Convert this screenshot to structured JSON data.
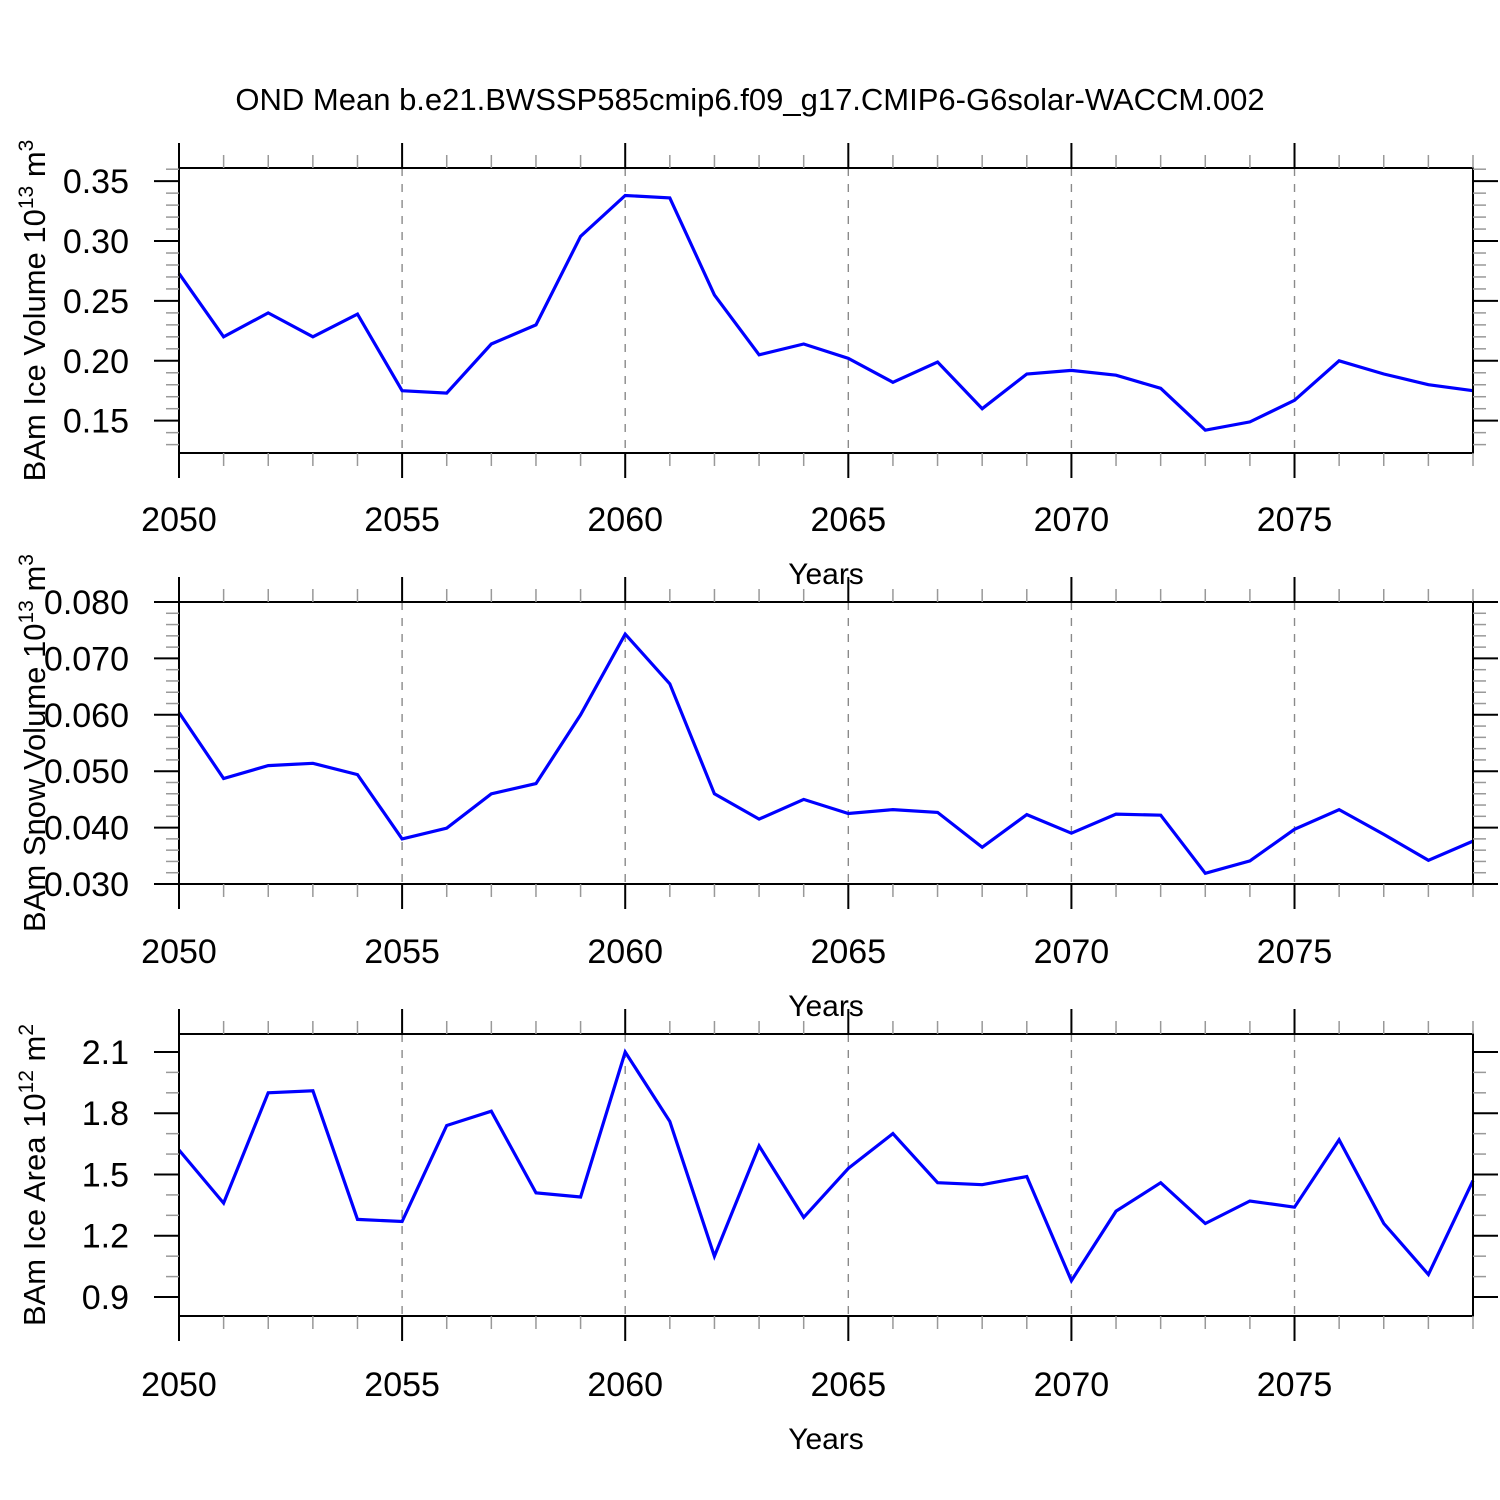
{
  "title": "OND Mean b.e21.BWSSP585cmip6.f09_g17.CMIP6-G6solar-WACCM.002",
  "colors": {
    "line": "#0000ff",
    "grid": "#8a8a8a",
    "axis": "#000000",
    "minor_tick": "#999999",
    "text": "#000000",
    "background": "#ffffff"
  },
  "x_axis": {
    "label": "Years",
    "years": [
      2050,
      2051,
      2052,
      2053,
      2054,
      2055,
      2056,
      2057,
      2058,
      2059,
      2060,
      2061,
      2062,
      2063,
      2064,
      2065,
      2066,
      2067,
      2068,
      2069,
      2070,
      2071,
      2072,
      2073,
      2074,
      2075,
      2076,
      2077,
      2078,
      2079
    ],
    "major_ticks": [
      2050,
      2055,
      2060,
      2065,
      2070,
      2075
    ],
    "major_tick_labels": [
      "2050",
      "2055",
      "2060",
      "2065",
      "2070",
      "2075"
    ],
    "minor_step": 1,
    "gridlines": [
      2055,
      2060,
      2065,
      2070,
      2075
    ],
    "range": [
      2050,
      2079
    ]
  },
  "chart_data": [
    {
      "type": "line",
      "name": "ice-volume",
      "ylabel": "BAm Ice Volume 10^13 m^3",
      "ylabel_parts": {
        "base": "BAm Ice Volume 10",
        "exp": "13",
        "unit": " m",
        "unit_exp": "3"
      },
      "xlabel": "Years",
      "ylim": [
        0.123,
        0.361
      ],
      "yticks": [
        0.15,
        0.2,
        0.25,
        0.3,
        0.35
      ],
      "ytick_labels": [
        "0.15",
        "0.20",
        "0.25",
        "0.30",
        "0.35"
      ],
      "y_minor_step": 0.01,
      "values": [
        0.273,
        0.22,
        0.24,
        0.22,
        0.239,
        0.175,
        0.173,
        0.214,
        0.23,
        0.304,
        0.338,
        0.336,
        0.255,
        0.205,
        0.214,
        0.202,
        0.182,
        0.199,
        0.16,
        0.189,
        0.192,
        0.188,
        0.177,
        0.142,
        0.149,
        0.167,
        0.2,
        0.189,
        0.18,
        0.175
      ]
    },
    {
      "type": "line",
      "name": "snow-volume",
      "ylabel": "BAm Snow Volume 10^13 m^3",
      "ylabel_parts": {
        "base": "BAm Snow Volume 10",
        "exp": "13",
        "unit": " m",
        "unit_exp": "3"
      },
      "xlabel": "Years",
      "ylim": [
        0.03,
        0.08
      ],
      "yticks": [
        0.03,
        0.04,
        0.05,
        0.06,
        0.07,
        0.08
      ],
      "ytick_labels": [
        "0.030",
        "0.040",
        "0.050",
        "0.060",
        "0.070",
        "0.080"
      ],
      "y_minor_step": 0.002,
      "values": [
        0.0604,
        0.0487,
        0.051,
        0.0514,
        0.0494,
        0.038,
        0.0399,
        0.046,
        0.0478,
        0.06,
        0.0743,
        0.0655,
        0.046,
        0.0415,
        0.045,
        0.0425,
        0.0432,
        0.0427,
        0.0365,
        0.0423,
        0.039,
        0.0424,
        0.0422,
        0.0319,
        0.0341,
        0.0397,
        0.0432,
        0.0388,
        0.0342,
        0.0376
      ]
    },
    {
      "type": "line",
      "name": "ice-area",
      "ylabel": "BAm Ice Area 10^12 m^2",
      "ylabel_parts": {
        "base": "BAm Ice Area 10",
        "exp": "12",
        "unit": " m",
        "unit_exp": "2"
      },
      "xlabel": "Years",
      "ylim": [
        0.807,
        2.188
      ],
      "yticks": [
        0.9,
        1.2,
        1.5,
        1.8,
        2.1
      ],
      "ytick_labels": [
        "0.9",
        "1.2",
        "1.5",
        "1.8",
        "2.1"
      ],
      "y_minor_step": 0.1,
      "values": [
        1.62,
        1.36,
        1.9,
        1.91,
        1.28,
        1.27,
        1.74,
        1.81,
        1.41,
        1.39,
        2.1,
        1.76,
        1.1,
        1.64,
        1.29,
        1.53,
        1.7,
        1.46,
        1.45,
        1.49,
        0.98,
        1.32,
        1.46,
        1.26,
        1.37,
        1.34,
        1.67,
        1.26,
        1.01,
        1.47
      ]
    }
  ]
}
